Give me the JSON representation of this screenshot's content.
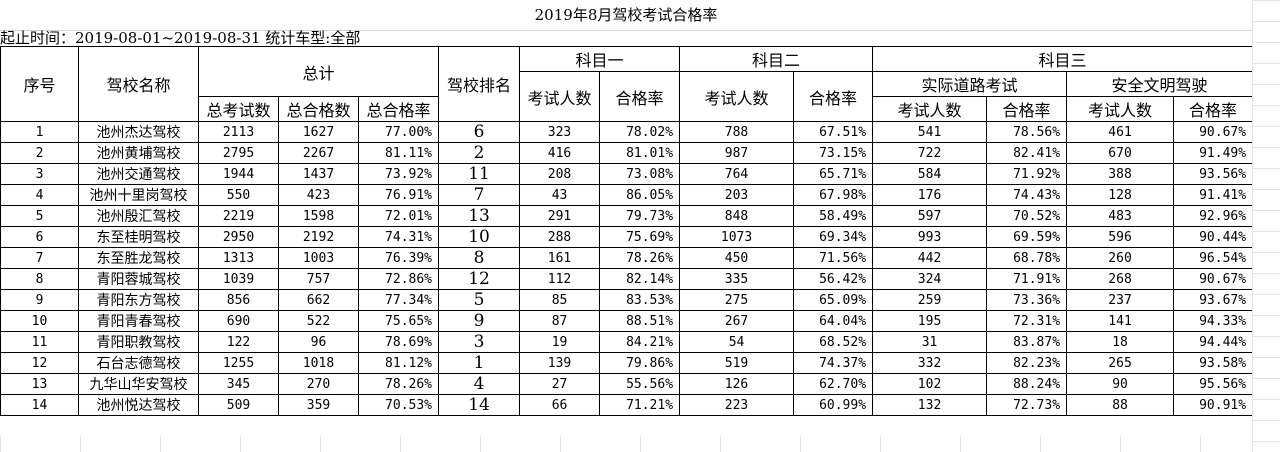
{
  "title": "2019年8月驾校考试合格率",
  "meta": "起止时间：2019-08-01~2019-08-31  统计车型:全部",
  "headers": {
    "seq": "序号",
    "school": "驾校名称",
    "total": "总计",
    "rank": "驾校排名",
    "subject1": "科目一",
    "subject2": "科目二",
    "subject3": "科目三",
    "road": "实际道路考试",
    "safe": "安全文明驾驶",
    "total_exam": "总考试数",
    "total_pass": "总合格数",
    "total_rate": "总合格率",
    "exam_count": "考试人数",
    "pass_rate": "合格率"
  },
  "rows": [
    {
      "seq": "1",
      "name": "池州杰达驾校",
      "total_exam": "2113",
      "total_pass": "1627",
      "total_rate": "77.00%",
      "rank": "6",
      "s1_exam": "323",
      "s1_rate": "78.02%",
      "s2_exam": "788",
      "s2_rate": "67.51%",
      "road_exam": "541",
      "road_rate": "78.56%",
      "safe_exam": "461",
      "safe_rate": "90.67%"
    },
    {
      "seq": "2",
      "name": "池州黄埔驾校",
      "total_exam": "2795",
      "total_pass": "2267",
      "total_rate": "81.11%",
      "rank": "2",
      "s1_exam": "416",
      "s1_rate": "81.01%",
      "s2_exam": "987",
      "s2_rate": "73.15%",
      "road_exam": "722",
      "road_rate": "82.41%",
      "safe_exam": "670",
      "safe_rate": "91.49%"
    },
    {
      "seq": "3",
      "name": "池州交通驾校",
      "total_exam": "1944",
      "total_pass": "1437",
      "total_rate": "73.92%",
      "rank": "11",
      "s1_exam": "208",
      "s1_rate": "73.08%",
      "s2_exam": "764",
      "s2_rate": "65.71%",
      "road_exam": "584",
      "road_rate": "71.92%",
      "safe_exam": "388",
      "safe_rate": "93.56%"
    },
    {
      "seq": "4",
      "name": "池州十里岗驾校",
      "total_exam": "550",
      "total_pass": "423",
      "total_rate": "76.91%",
      "rank": "7",
      "s1_exam": "43",
      "s1_rate": "86.05%",
      "s2_exam": "203",
      "s2_rate": "67.98%",
      "road_exam": "176",
      "road_rate": "74.43%",
      "safe_exam": "128",
      "safe_rate": "91.41%"
    },
    {
      "seq": "5",
      "name": "池州殷汇驾校",
      "total_exam": "2219",
      "total_pass": "1598",
      "total_rate": "72.01%",
      "rank": "13",
      "s1_exam": "291",
      "s1_rate": "79.73%",
      "s2_exam": "848",
      "s2_rate": "58.49%",
      "road_exam": "597",
      "road_rate": "70.52%",
      "safe_exam": "483",
      "safe_rate": "92.96%"
    },
    {
      "seq": "6",
      "name": "东至桂明驾校",
      "total_exam": "2950",
      "total_pass": "2192",
      "total_rate": "74.31%",
      "rank": "10",
      "s1_exam": "288",
      "s1_rate": "75.69%",
      "s2_exam": "1073",
      "s2_rate": "69.34%",
      "road_exam": "993",
      "road_rate": "69.59%",
      "safe_exam": "596",
      "safe_rate": "90.44%"
    },
    {
      "seq": "7",
      "name": "东至胜龙驾校",
      "total_exam": "1313",
      "total_pass": "1003",
      "total_rate": "76.39%",
      "rank": "8",
      "s1_exam": "161",
      "s1_rate": "78.26%",
      "s2_exam": "450",
      "s2_rate": "71.56%",
      "road_exam": "442",
      "road_rate": "68.78%",
      "safe_exam": "260",
      "safe_rate": "96.54%"
    },
    {
      "seq": "8",
      "name": "青阳蓉城驾校",
      "total_exam": "1039",
      "total_pass": "757",
      "total_rate": "72.86%",
      "rank": "12",
      "s1_exam": "112",
      "s1_rate": "82.14%",
      "s2_exam": "335",
      "s2_rate": "56.42%",
      "road_exam": "324",
      "road_rate": "71.91%",
      "safe_exam": "268",
      "safe_rate": "90.67%"
    },
    {
      "seq": "9",
      "name": "青阳东方驾校",
      "total_exam": "856",
      "total_pass": "662",
      "total_rate": "77.34%",
      "rank": "5",
      "s1_exam": "85",
      "s1_rate": "83.53%",
      "s2_exam": "275",
      "s2_rate": "65.09%",
      "road_exam": "259",
      "road_rate": "73.36%",
      "safe_exam": "237",
      "safe_rate": "93.67%"
    },
    {
      "seq": "10",
      "name": "青阳青春驾校",
      "total_exam": "690",
      "total_pass": "522",
      "total_rate": "75.65%",
      "rank": "9",
      "s1_exam": "87",
      "s1_rate": "88.51%",
      "s2_exam": "267",
      "s2_rate": "64.04%",
      "road_exam": "195",
      "road_rate": "72.31%",
      "safe_exam": "141",
      "safe_rate": "94.33%"
    },
    {
      "seq": "11",
      "name": "青阳职教驾校",
      "total_exam": "122",
      "total_pass": "96",
      "total_rate": "78.69%",
      "rank": "3",
      "s1_exam": "19",
      "s1_rate": "84.21%",
      "s2_exam": "54",
      "s2_rate": "68.52%",
      "road_exam": "31",
      "road_rate": "83.87%",
      "safe_exam": "18",
      "safe_rate": "94.44%"
    },
    {
      "seq": "12",
      "name": "石台志德驾校",
      "total_exam": "1255",
      "total_pass": "1018",
      "total_rate": "81.12%",
      "rank": "1",
      "s1_exam": "139",
      "s1_rate": "79.86%",
      "s2_exam": "519",
      "s2_rate": "74.37%",
      "road_exam": "332",
      "road_rate": "82.23%",
      "safe_exam": "265",
      "safe_rate": "93.58%"
    },
    {
      "seq": "13",
      "name": "九华山华安驾校",
      "total_exam": "345",
      "total_pass": "270",
      "total_rate": "78.26%",
      "rank": "4",
      "s1_exam": "27",
      "s1_rate": "55.56%",
      "s2_exam": "126",
      "s2_rate": "62.70%",
      "road_exam": "102",
      "road_rate": "88.24%",
      "safe_exam": "90",
      "safe_rate": "95.56%"
    },
    {
      "seq": "14",
      "name": "池州悦达驾校",
      "total_exam": "509",
      "total_pass": "359",
      "total_rate": "70.53%",
      "rank": "14",
      "s1_exam": "66",
      "s1_rate": "71.21%",
      "s2_exam": "223",
      "s2_rate": "60.99%",
      "road_exam": "132",
      "road_rate": "72.73%",
      "safe_exam": "88",
      "safe_rate": "90.91%"
    }
  ]
}
